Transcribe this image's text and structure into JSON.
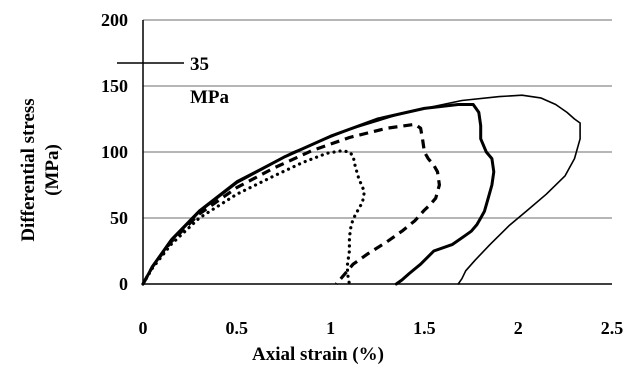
{
  "chart_data": {
    "type": "line",
    "xlabel": "Axial strain (%)",
    "ylabel": [
      "Differential stress",
      "(MPa)"
    ],
    "xlim": [
      0,
      2.5
    ],
    "ylim": [
      0,
      200
    ],
    "x_ticks": [
      "0",
      "0.5",
      "1",
      "1.5",
      "2",
      "2.5"
    ],
    "y_ticks": [
      "0",
      "50",
      "100",
      "150",
      "200"
    ],
    "grid": "horizontal",
    "legend_placement": "top-left",
    "legend": [
      {
        "label_lines": [
          "35",
          "MPa"
        ],
        "style": "solid",
        "color": "#000000"
      }
    ],
    "series": [
      {
        "style": "dotted",
        "color": "#000000",
        "x": [
          0,
          0.05,
          0.15,
          0.3,
          0.5,
          0.7,
          0.85,
          0.98,
          1.06,
          1.1,
          1.12,
          1.13,
          1.15,
          1.18,
          1.17,
          1.15,
          1.13,
          1.11,
          1.1,
          1.1,
          1.09,
          1.09,
          1.1
        ],
        "y": [
          0,
          12,
          30,
          50,
          68,
          82,
          92,
          99,
          101,
          100,
          97,
          90,
          80,
          70,
          62,
          57,
          52,
          45,
          35,
          25,
          15,
          8,
          0
        ]
      },
      {
        "style": "dashed",
        "color": "#000000",
        "x": [
          0,
          0.05,
          0.15,
          0.3,
          0.5,
          0.7,
          0.9,
          1.1,
          1.3,
          1.45,
          1.48,
          1.49,
          1.5,
          1.52,
          1.55,
          1.57,
          1.58,
          1.56,
          1.53,
          1.5,
          1.45,
          1.38,
          1.3,
          1.2,
          1.12,
          1.06,
          1.03
        ],
        "y": [
          0,
          13,
          32,
          53,
          73,
          88,
          101,
          111,
          118,
          121,
          118,
          110,
          100,
          95,
          90,
          85,
          75,
          65,
          60,
          56,
          48,
          40,
          32,
          23,
          15,
          5,
          0
        ]
      },
      {
        "style": "solid-thick",
        "color": "#000000",
        "x": [
          0,
          0.05,
          0.15,
          0.3,
          0.5,
          0.75,
          1.0,
          1.25,
          1.5,
          1.68,
          1.76,
          1.79,
          1.8,
          1.8,
          1.83,
          1.86,
          1.87,
          1.86,
          1.84,
          1.82,
          1.8,
          1.78,
          1.75,
          1.72,
          1.65,
          1.55,
          1.48,
          1.42,
          1.38,
          1.35
        ],
        "y": [
          0,
          13,
          33,
          55,
          77,
          96,
          112,
          125,
          133,
          136,
          136,
          130,
          120,
          110,
          100,
          95,
          85,
          75,
          65,
          55,
          50,
          45,
          40,
          37,
          30,
          25,
          15,
          8,
          3,
          0
        ]
      },
      {
        "style": "solid-thin",
        "color": "#000000",
        "x": [
          0,
          0.05,
          0.15,
          0.3,
          0.5,
          0.8,
          1.1,
          1.4,
          1.7,
          1.9,
          2.02,
          2.12,
          2.2,
          2.26,
          2.3,
          2.33,
          2.33,
          2.3,
          2.25,
          2.15,
          2.05,
          1.95,
          1.85,
          1.77,
          1.72,
          1.7,
          1.68
        ],
        "y": [
          0,
          14,
          34,
          56,
          78,
          100,
          117,
          130,
          139,
          142,
          143,
          141,
          136,
          130,
          125,
          122,
          110,
          95,
          82,
          68,
          56,
          44,
          30,
          18,
          10,
          4,
          0
        ]
      }
    ]
  }
}
